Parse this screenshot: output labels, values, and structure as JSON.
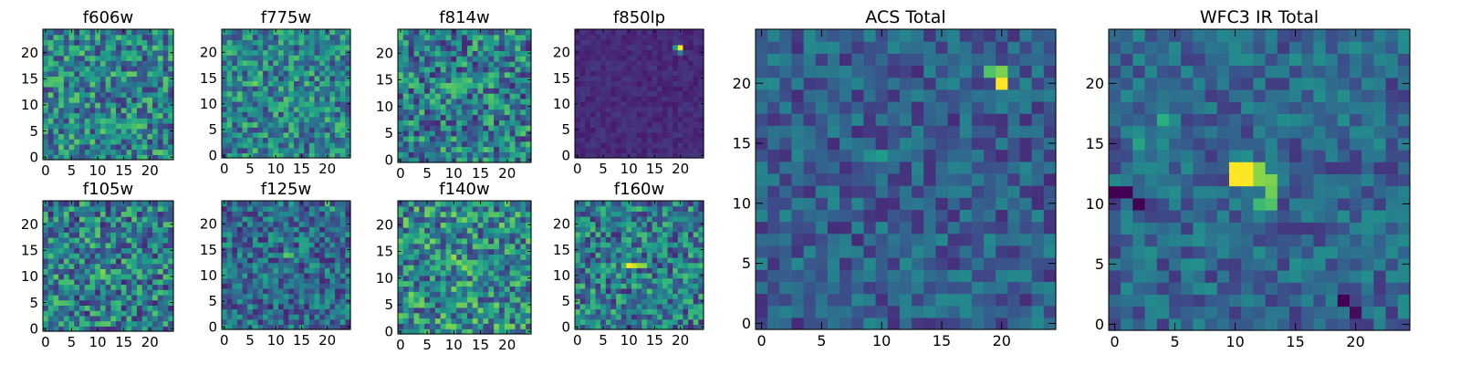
{
  "figure_title": "",
  "chart_data": [
    {
      "type": "heatmap",
      "title": "f606w",
      "xticks": [
        "0",
        "5",
        "10",
        "15",
        "20"
      ],
      "yticks": [
        "0",
        "5",
        "10",
        "15",
        "20"
      ],
      "xlim": [
        -0.5,
        24.5
      ],
      "ylim": [
        -0.5,
        24.5
      ],
      "grid_size": 25,
      "colormap": "viridis",
      "hotspots": []
    },
    {
      "type": "heatmap",
      "title": "f775w",
      "xticks": [
        "0",
        "5",
        "10",
        "15",
        "20"
      ],
      "yticks": [
        "0",
        "5",
        "10",
        "15",
        "20"
      ],
      "xlim": [
        -0.5,
        24.5
      ],
      "ylim": [
        -0.5,
        24.5
      ],
      "grid_size": 25,
      "colormap": "viridis",
      "hotspots": [
        [
          6,
          14,
          0.78
        ],
        [
          5,
          14,
          0.7
        ],
        [
          7,
          14,
          0.62
        ]
      ]
    },
    {
      "type": "heatmap",
      "title": "f814w",
      "xticks": [
        "0",
        "5",
        "10",
        "15",
        "20"
      ],
      "yticks": [
        "0",
        "5",
        "10",
        "15",
        "20"
      ],
      "xlim": [
        -0.5,
        24.5
      ],
      "ylim": [
        -0.5,
        24.5
      ],
      "grid_size": 25,
      "colormap": "viridis",
      "hotspots": [
        [
          9,
          14,
          0.75
        ],
        [
          10,
          14,
          0.72
        ],
        [
          11,
          14,
          0.7
        ],
        [
          12,
          14,
          0.65
        ]
      ]
    },
    {
      "type": "heatmap",
      "title": "f850lp",
      "xticks": [
        "0",
        "5",
        "10",
        "15",
        "20"
      ],
      "yticks": [
        "0",
        "5",
        "10",
        "15",
        "20"
      ],
      "xlim": [
        -0.5,
        24.5
      ],
      "ylim": [
        -0.5,
        24.5
      ],
      "grid_size": 25,
      "colormap": "viridis",
      "hotspots": [
        [
          20,
          21,
          1.0
        ],
        [
          19,
          21,
          0.55
        ],
        [
          20,
          20,
          0.45
        ]
      ]
    },
    {
      "type": "heatmap",
      "title": "ACS Total",
      "xticks": [
        "0",
        "5",
        "10",
        "15",
        "20"
      ],
      "yticks": [
        "0",
        "5",
        "10",
        "15",
        "20"
      ],
      "xlim": [
        -0.5,
        24.5
      ],
      "ylim": [
        -0.5,
        24.5
      ],
      "grid_size": 25,
      "colormap": "viridis",
      "hotspots": [
        [
          20,
          20,
          1.0
        ],
        [
          20,
          21,
          0.8
        ],
        [
          19,
          21,
          0.72
        ],
        [
          10,
          14,
          0.55
        ],
        [
          9,
          14,
          0.5
        ],
        [
          13,
          13,
          0.45
        ],
        [
          13,
          12,
          0.42
        ]
      ]
    },
    {
      "type": "heatmap",
      "title": "f105w",
      "xticks": [
        "0",
        "5",
        "10",
        "15",
        "20"
      ],
      "yticks": [
        "0",
        "5",
        "10",
        "15",
        "20"
      ],
      "xlim": [
        -0.5,
        24.5
      ],
      "ylim": [
        -0.5,
        24.5
      ],
      "grid_size": 25,
      "colormap": "viridis",
      "hotspots": [
        [
          11,
          11,
          0.8
        ],
        [
          11,
          10,
          0.75
        ],
        [
          10,
          12,
          0.7
        ],
        [
          12,
          9,
          0.68
        ]
      ]
    },
    {
      "type": "heatmap",
      "title": "f125w",
      "xticks": [
        "0",
        "5",
        "10",
        "15",
        "20"
      ],
      "yticks": [
        "0",
        "5",
        "10",
        "15",
        "20"
      ],
      "xlim": [
        -0.5,
        24.5
      ],
      "ylim": [
        -0.5,
        24.5
      ],
      "grid_size": 25,
      "colormap": "viridis",
      "hotspots": [
        [
          12,
          14,
          0.75
        ],
        [
          13,
          14,
          0.7
        ],
        [
          20,
          24,
          0.72
        ],
        [
          21,
          23,
          0.68
        ]
      ]
    },
    {
      "type": "heatmap",
      "title": "f140w",
      "xticks": [
        "0",
        "5",
        "10",
        "15",
        "20"
      ],
      "yticks": [
        "0",
        "5",
        "10",
        "15",
        "20"
      ],
      "xlim": [
        -0.5,
        24.5
      ],
      "ylim": [
        -0.5,
        24.5
      ],
      "grid_size": 25,
      "colormap": "viridis",
      "hotspots": [
        [
          10,
          14,
          0.85
        ],
        [
          11,
          13,
          0.8
        ],
        [
          12,
          12,
          0.82
        ],
        [
          13,
          11,
          0.78
        ],
        [
          3,
          2,
          0.75
        ]
      ]
    },
    {
      "type": "heatmap",
      "title": "f160w",
      "xticks": [
        "0",
        "5",
        "10",
        "15",
        "20"
      ],
      "yticks": [
        "0",
        "5",
        "10",
        "15",
        "20"
      ],
      "xlim": [
        -0.5,
        24.5
      ],
      "ylim": [
        -0.5,
        24.5
      ],
      "grid_size": 25,
      "colormap": "viridis",
      "hotspots": [
        [
          10,
          12,
          1.0
        ],
        [
          11,
          12,
          0.92
        ],
        [
          12,
          12,
          0.85
        ],
        [
          13,
          12,
          0.82
        ],
        [
          4,
          18,
          0.7
        ]
      ]
    },
    {
      "type": "heatmap",
      "title": "WFC3 IR Total",
      "xticks": [
        "0",
        "5",
        "10",
        "15",
        "20"
      ],
      "yticks": [
        "0",
        "5",
        "10",
        "15",
        "20"
      ],
      "xlim": [
        -0.5,
        24.5
      ],
      "ylim": [
        -0.5,
        24.5
      ],
      "grid_size": 25,
      "colormap": "viridis",
      "hotspots": [
        [
          10,
          13,
          1.0
        ],
        [
          11,
          13,
          1.0
        ],
        [
          10,
          12,
          1.0
        ],
        [
          11,
          12,
          1.0
        ],
        [
          12,
          13,
          0.82
        ],
        [
          13,
          12,
          0.8
        ],
        [
          12,
          12,
          0.82
        ],
        [
          13,
          11,
          0.78
        ],
        [
          13,
          10,
          0.72
        ],
        [
          12,
          10,
          0.68
        ],
        [
          4,
          17,
          0.62
        ],
        [
          2,
          15,
          0.58
        ],
        [
          0,
          11,
          -0.6
        ],
        [
          1,
          11,
          -0.6
        ],
        [
          2,
          10,
          -0.55
        ],
        [
          19,
          2,
          -0.55
        ],
        [
          20,
          1,
          -0.5
        ]
      ]
    }
  ]
}
